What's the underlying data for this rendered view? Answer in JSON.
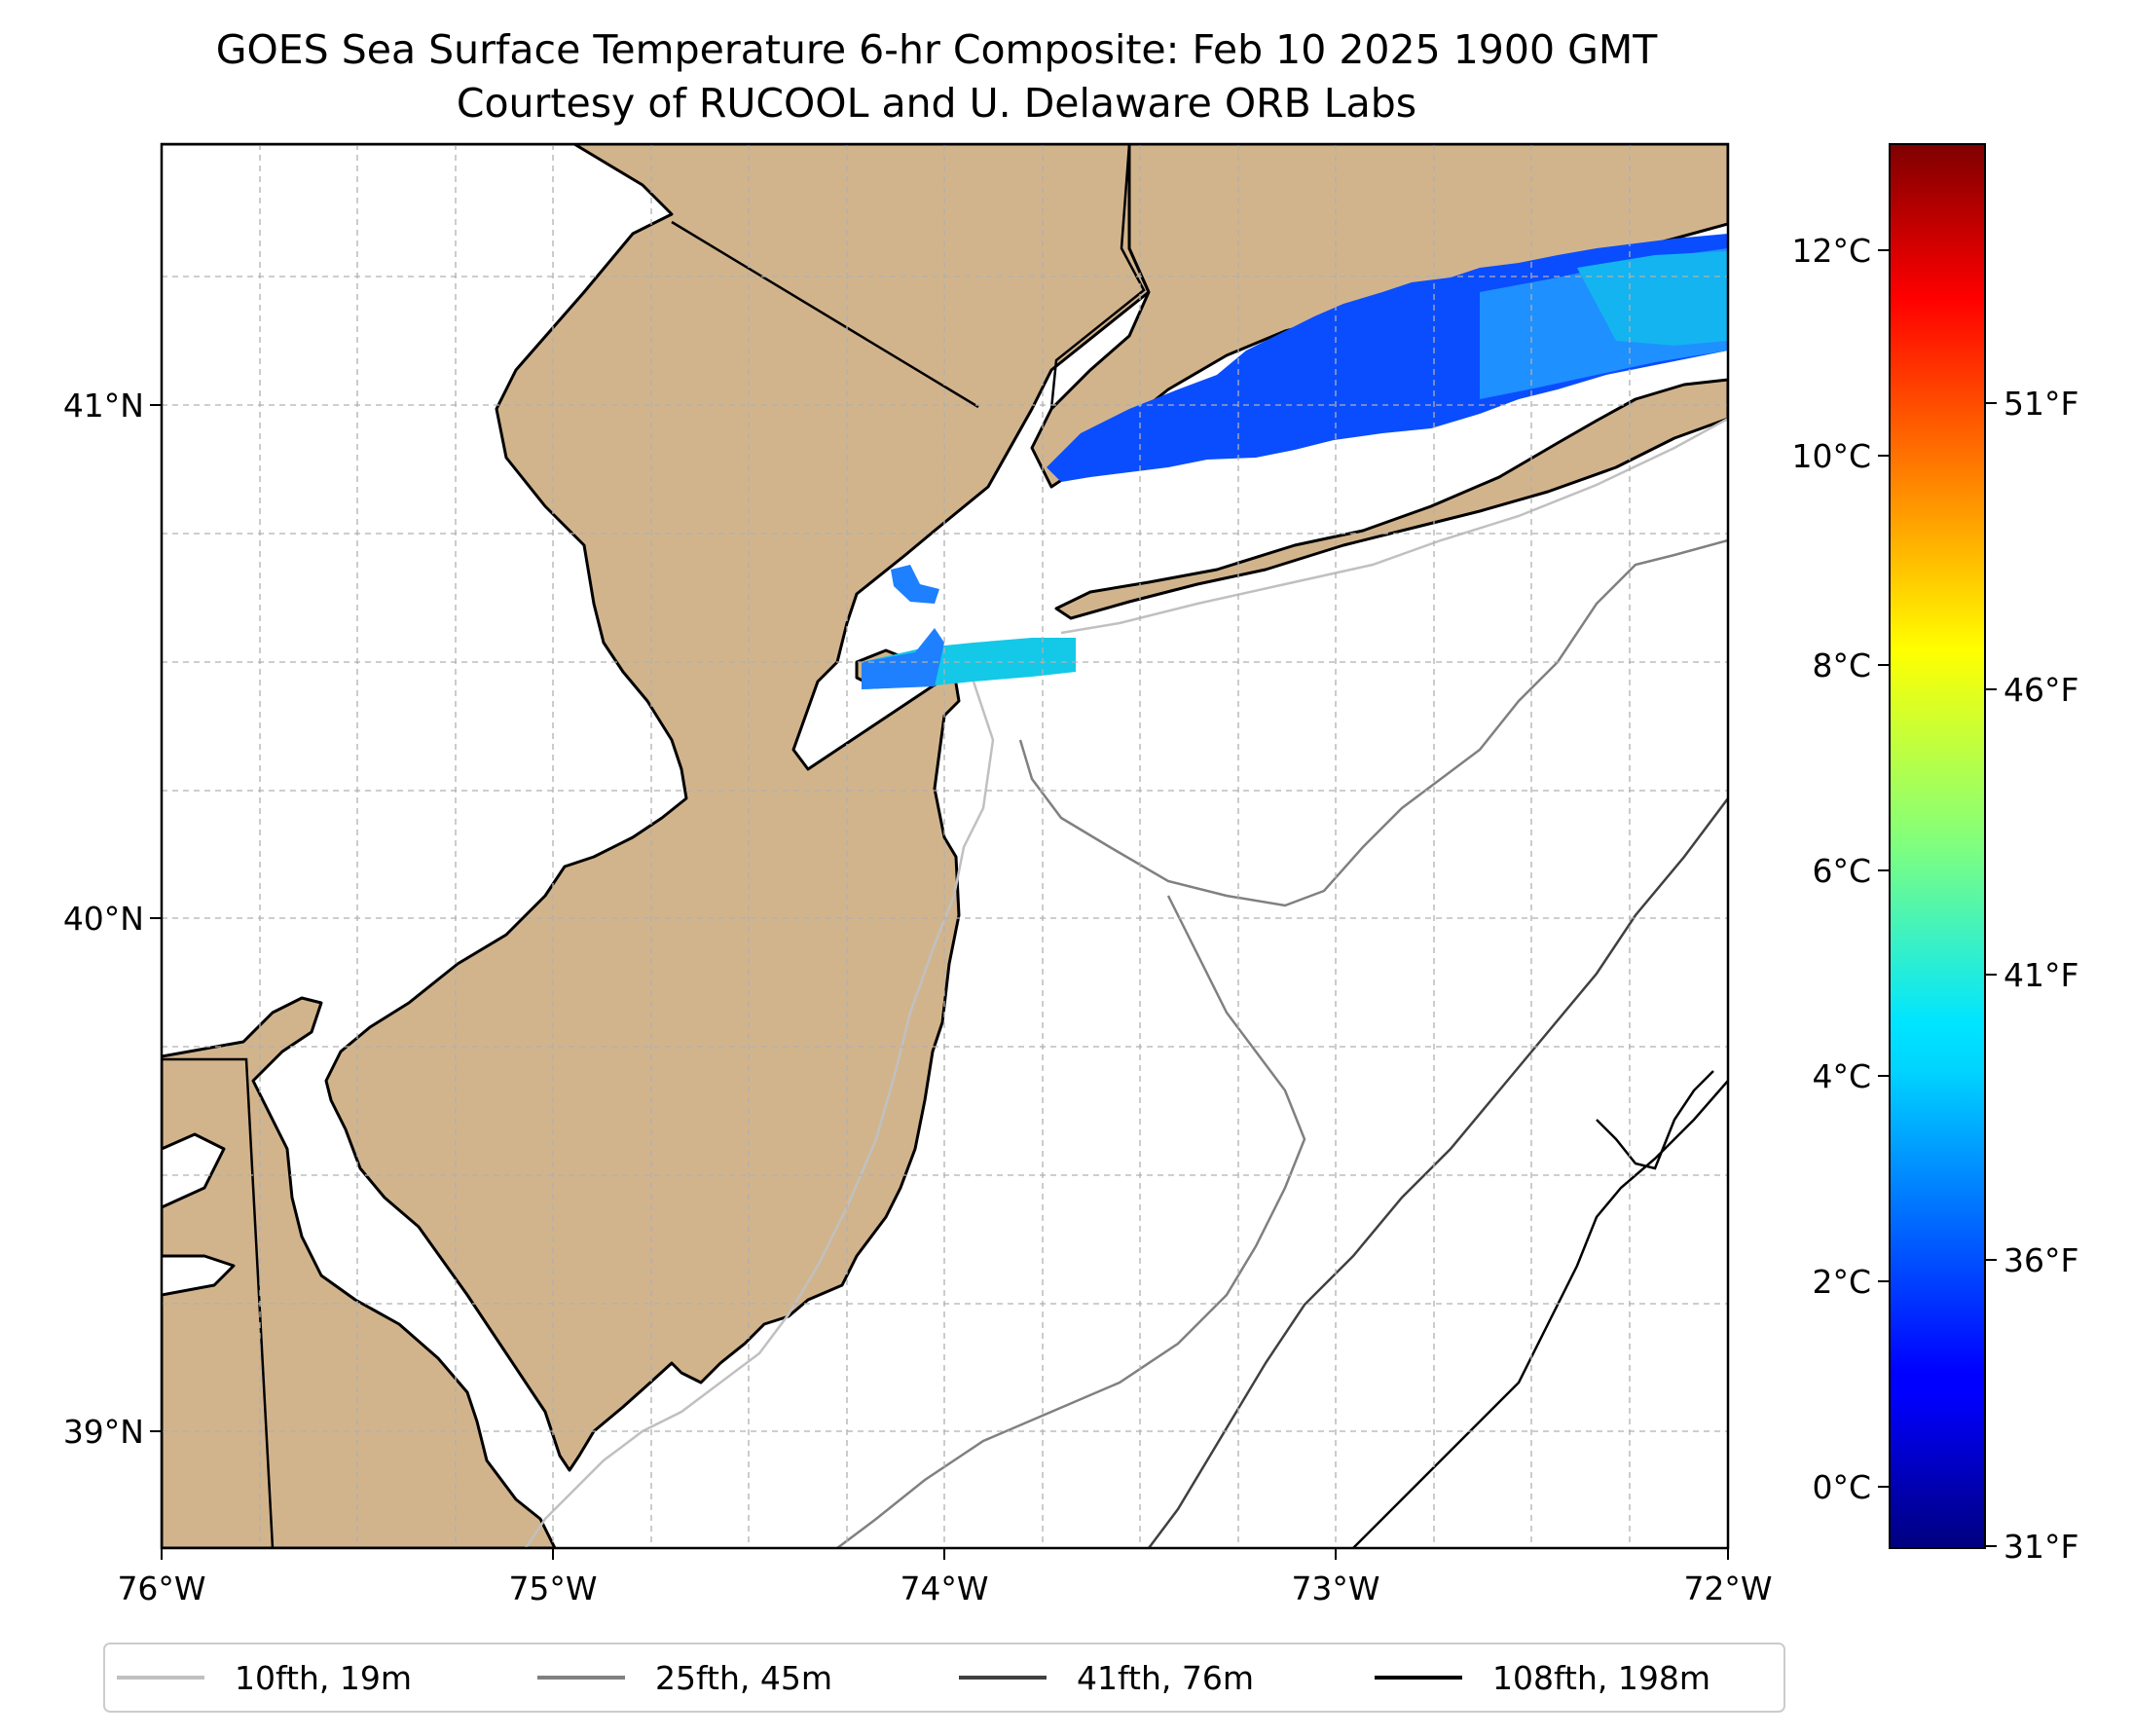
{
  "title": {
    "line1": "GOES Sea Surface Temperature 6-hr Composite: Feb 10 2025 1900 GMT",
    "line2": "Courtesy of RUCOOL and U. Delaware ORB Labs"
  },
  "map": {
    "lon_range": [
      -76,
      -72
    ],
    "lat_range": [
      38.75,
      41.5
    ],
    "lon_ticks": [
      {
        "value": -76,
        "label": "76°W"
      },
      {
        "value": -75,
        "label": "75°W"
      },
      {
        "value": -74,
        "label": "74°W"
      },
      {
        "value": -73,
        "label": "73°W"
      },
      {
        "value": -72,
        "label": "72°W"
      }
    ],
    "lat_ticks": [
      {
        "value": 41,
        "label": "41°N"
      },
      {
        "value": 40,
        "label": "40°N"
      },
      {
        "value": 39,
        "label": "39°N"
      }
    ],
    "grid": true,
    "colors": {
      "land": "#d2b48c",
      "water": "#ffffff",
      "coast": "#000000",
      "grid": "#b0b0b0"
    }
  },
  "colorbar": {
    "colormap": "jet",
    "celsius_ticks": [
      {
        "value": 0,
        "label": "0°C"
      },
      {
        "value": 2,
        "label": "2°C"
      },
      {
        "value": 4,
        "label": "4°C"
      },
      {
        "value": 6,
        "label": "6°C"
      },
      {
        "value": 8,
        "label": "8°C"
      },
      {
        "value": 10,
        "label": "10°C"
      },
      {
        "value": 12,
        "label": "12°C"
      }
    ],
    "fahrenheit_ticks": [
      {
        "value": 31,
        "label": "31°F"
      },
      {
        "value": 36,
        "label": "36°F"
      },
      {
        "value": 41,
        "label": "41°F"
      },
      {
        "value": 46,
        "label": "46°F"
      },
      {
        "value": 51,
        "label": "51°F"
      }
    ],
    "range_c": [
      -0.6,
      13.1
    ]
  },
  "legend": {
    "placement": "bottom",
    "items": [
      {
        "label": "10fth, 19m",
        "color": "#c0c0c0"
      },
      {
        "label": "25fth, 45m",
        "color": "#808080"
      },
      {
        "label": "41fth, 76m",
        "color": "#404040"
      },
      {
        "label": "108fth, 198m",
        "color": "#000000"
      }
    ]
  }
}
